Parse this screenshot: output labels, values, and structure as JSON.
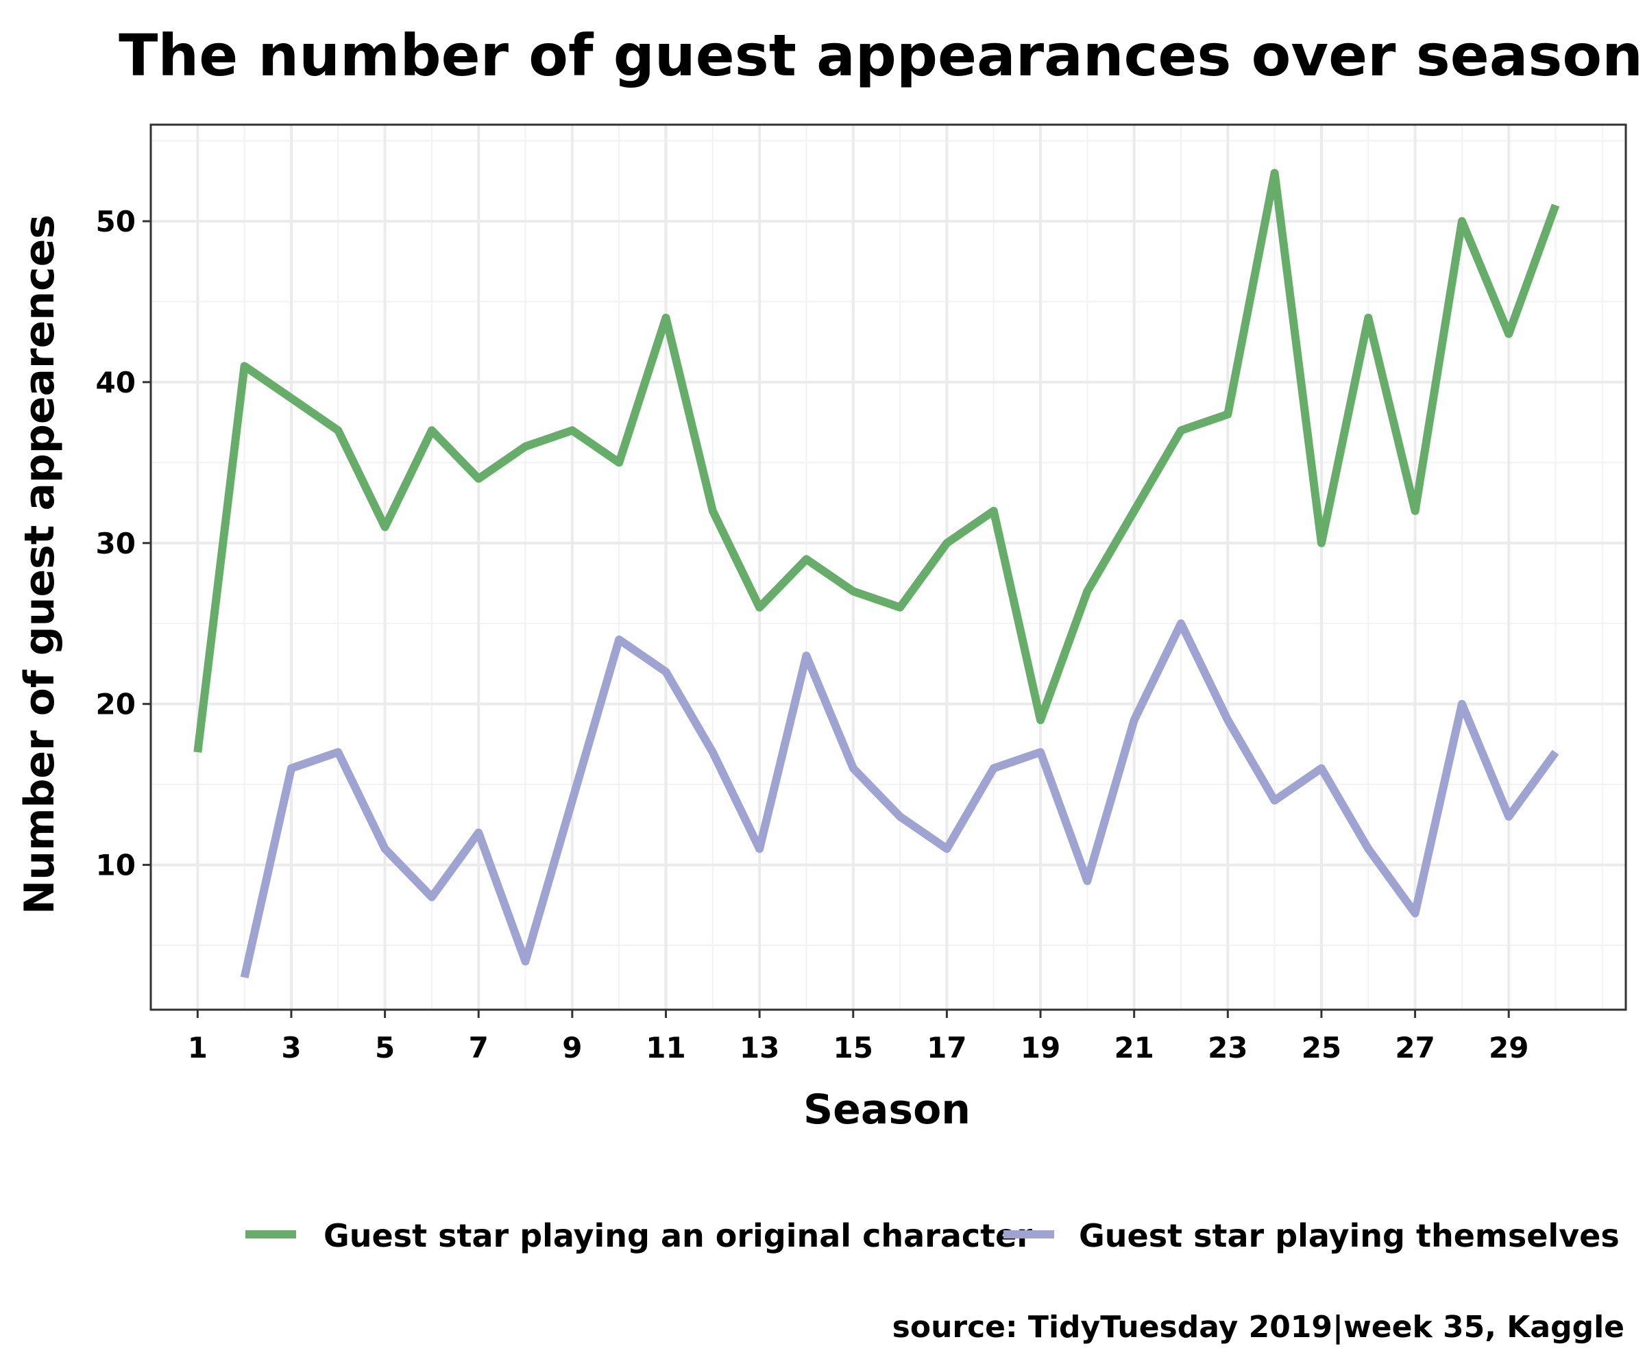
{
  "chart_data": {
    "type": "line",
    "title": "The number of guest appearances over seasons",
    "xlabel": "Season",
    "ylabel": "Number of guest appearences",
    "caption": "source: TidyTuesday 2019|week 35, Kaggle",
    "x": [
      1,
      2,
      3,
      4,
      5,
      6,
      7,
      8,
      9,
      10,
      11,
      12,
      13,
      14,
      15,
      16,
      17,
      18,
      19,
      20,
      21,
      22,
      23,
      24,
      25,
      26,
      27,
      28,
      29,
      30
    ],
    "xlim": [
      0,
      31.5
    ],
    "ylim": [
      1,
      56
    ],
    "x_ticks": [
      "1",
      "3",
      "5",
      "7",
      "9",
      "11",
      "13",
      "15",
      "17",
      "19",
      "21",
      "23",
      "25",
      "27",
      "29"
    ],
    "y_ticks": [
      "10",
      "20",
      "30",
      "40",
      "50"
    ],
    "grid": true,
    "legend_position": "bottom",
    "series": [
      {
        "name": "Guest star playing an original character",
        "color": "#66ad69",
        "x": [
          1,
          2,
          3,
          4,
          5,
          6,
          7,
          8,
          9,
          10,
          11,
          12,
          13,
          14,
          15,
          16,
          17,
          18,
          19,
          20,
          21,
          22,
          23,
          24,
          25,
          26,
          27,
          28,
          29,
          30
        ],
        "values": [
          17,
          41,
          39,
          37,
          31,
          37,
          34,
          36,
          37,
          35,
          44,
          32,
          26,
          29,
          27,
          26,
          30,
          32,
          19,
          27,
          32,
          37,
          38,
          53,
          30,
          44,
          32,
          50,
          43,
          51
        ]
      },
      {
        "name": "Guest star playing themselves",
        "color": "#9ea3d2",
        "x": [
          2,
          3,
          4,
          5,
          6,
          7,
          8,
          9,
          10,
          11,
          12,
          13,
          14,
          15,
          16,
          17,
          18,
          19,
          20,
          21,
          22,
          23,
          24,
          25,
          26,
          27,
          28,
          29,
          30
        ],
        "values": [
          3,
          16,
          17,
          11,
          8,
          12,
          4,
          14,
          24,
          22,
          17,
          11,
          23,
          16,
          13,
          11,
          16,
          17,
          9,
          19,
          25,
          19,
          14,
          16,
          11,
          7,
          20,
          13,
          17
        ]
      }
    ]
  }
}
